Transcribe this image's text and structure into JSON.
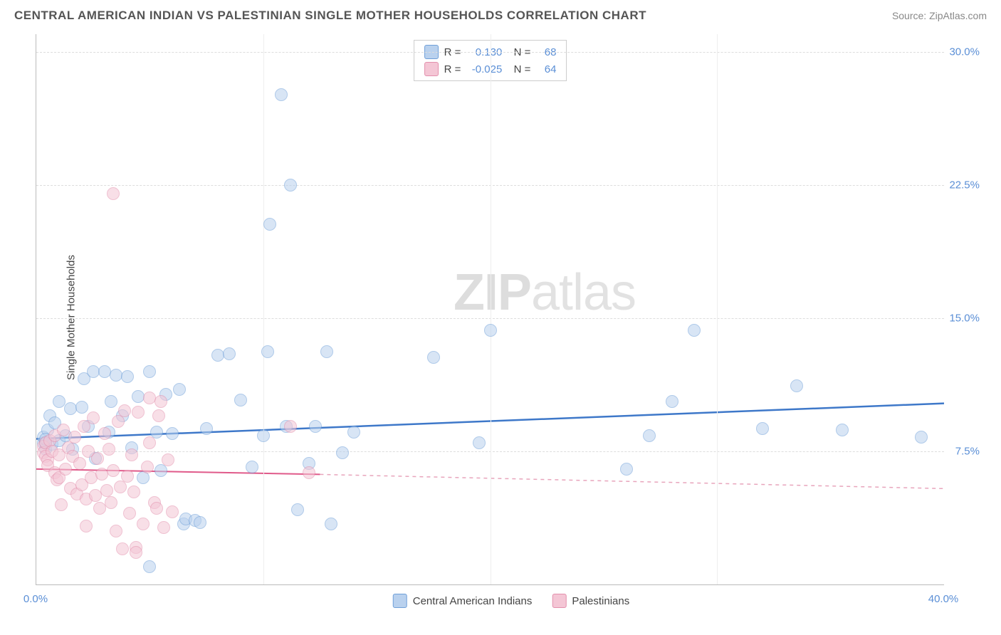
{
  "title": "CENTRAL AMERICAN INDIAN VS PALESTINIAN SINGLE MOTHER HOUSEHOLDS CORRELATION CHART",
  "source": "Source: ZipAtlas.com",
  "watermark_a": "ZIP",
  "watermark_b": "atlas",
  "chart": {
    "type": "scatter",
    "xlim": [
      0,
      40
    ],
    "ylim": [
      0,
      31
    ],
    "x_ticks": [
      0,
      10,
      20,
      30,
      40
    ],
    "x_tick_labels": [
      "0.0%",
      "",
      "",
      "",
      "40.0%"
    ],
    "y_ticks": [
      7.5,
      15.0,
      22.5,
      30.0
    ],
    "y_tick_labels": [
      "7.5%",
      "15.0%",
      "22.5%",
      "30.0%"
    ],
    "y_axis_label": "Single Mother Households",
    "background_color": "#ffffff",
    "grid_color": "#dddddd",
    "marker_radius": 9,
    "marker_opacity": 0.55,
    "series": [
      {
        "name": "Central American Indians",
        "fill": "#b9d1ee",
        "stroke": "#6f9fd8",
        "r_value": "0.130",
        "n_value": "68",
        "trend": {
          "x1": 0,
          "y1": 8.2,
          "x2": 40,
          "y2": 10.2,
          "color": "#3e78c9",
          "width": 2.5,
          "dash": "none"
        },
        "points": [
          [
            0.3,
            8.0
          ],
          [
            0.3,
            8.3
          ],
          [
            0.4,
            7.6
          ],
          [
            0.5,
            8.7
          ],
          [
            0.6,
            9.5
          ],
          [
            0.7,
            7.9
          ],
          [
            0.8,
            9.1
          ],
          [
            1.0,
            10.3
          ],
          [
            1.0,
            8.1
          ],
          [
            1.3,
            8.4
          ],
          [
            1.5,
            9.9
          ],
          [
            1.6,
            7.6
          ],
          [
            2.0,
            10.0
          ],
          [
            2.1,
            11.6
          ],
          [
            2.3,
            8.9
          ],
          [
            2.5,
            12.0
          ],
          [
            2.6,
            7.1
          ],
          [
            3.0,
            12.0
          ],
          [
            3.2,
            8.6
          ],
          [
            3.3,
            10.3
          ],
          [
            3.5,
            11.8
          ],
          [
            3.8,
            9.5
          ],
          [
            4.0,
            11.7
          ],
          [
            4.2,
            7.7
          ],
          [
            4.5,
            10.6
          ],
          [
            4.7,
            6.0
          ],
          [
            5.0,
            12.0
          ],
          [
            5.3,
            8.6
          ],
          [
            5.5,
            6.4
          ],
          [
            5.7,
            10.7
          ],
          [
            6.0,
            8.5
          ],
          [
            6.3,
            11.0
          ],
          [
            6.5,
            3.4
          ],
          [
            6.6,
            3.7
          ],
          [
            7.0,
            3.6
          ],
          [
            7.2,
            3.5
          ],
          [
            7.5,
            8.8
          ],
          [
            8.0,
            12.9
          ],
          [
            8.5,
            13.0
          ],
          [
            9.0,
            10.4
          ],
          [
            9.5,
            6.6
          ],
          [
            10.0,
            8.4
          ],
          [
            10.2,
            13.1
          ],
          [
            10.3,
            20.3
          ],
          [
            10.8,
            27.6
          ],
          [
            11.0,
            8.9
          ],
          [
            11.2,
            22.5
          ],
          [
            11.5,
            4.2
          ],
          [
            12.0,
            6.8
          ],
          [
            12.3,
            8.9
          ],
          [
            12.8,
            13.1
          ],
          [
            13.0,
            3.4
          ],
          [
            13.5,
            7.4
          ],
          [
            14.0,
            8.6
          ],
          [
            17.5,
            12.8
          ],
          [
            19.5,
            8.0
          ],
          [
            20.0,
            14.3
          ],
          [
            26.0,
            6.5
          ],
          [
            27.0,
            8.4
          ],
          [
            28.0,
            10.3
          ],
          [
            29.0,
            14.3
          ],
          [
            32.0,
            8.8
          ],
          [
            33.5,
            11.2
          ],
          [
            35.5,
            8.7
          ],
          [
            39.0,
            8.3
          ],
          [
            5.0,
            1.0
          ],
          [
            0.4,
            8.0
          ],
          [
            0.4,
            8.2
          ]
        ]
      },
      {
        "name": "Palestinians",
        "fill": "#f4c6d5",
        "stroke": "#e38fac",
        "r_value": "-0.025",
        "n_value": "64",
        "trend_solid": {
          "x1": 0,
          "y1": 6.5,
          "x2": 12.5,
          "y2": 6.2,
          "color": "#e05a8a",
          "width": 2,
          "dash": "none"
        },
        "trend_dash": {
          "x1": 12.5,
          "y1": 6.2,
          "x2": 40,
          "y2": 5.4,
          "color": "#e8a5bc",
          "width": 1.5,
          "dash": "5,5"
        },
        "points": [
          [
            0.3,
            7.8
          ],
          [
            0.3,
            7.4
          ],
          [
            0.4,
            7.2
          ],
          [
            0.4,
            8.0
          ],
          [
            0.5,
            7.0
          ],
          [
            0.5,
            6.7
          ],
          [
            0.6,
            8.1
          ],
          [
            0.7,
            7.5
          ],
          [
            0.8,
            8.4
          ],
          [
            0.8,
            6.3
          ],
          [
            0.9,
            5.9
          ],
          [
            1.0,
            7.3
          ],
          [
            1.0,
            6.0
          ],
          [
            1.2,
            8.7
          ],
          [
            1.3,
            6.5
          ],
          [
            1.4,
            7.7
          ],
          [
            1.5,
            5.4
          ],
          [
            1.6,
            7.2
          ],
          [
            1.7,
            8.3
          ],
          [
            1.8,
            5.1
          ],
          [
            1.9,
            6.8
          ],
          [
            2.0,
            5.6
          ],
          [
            2.1,
            8.9
          ],
          [
            2.2,
            4.8
          ],
          [
            2.3,
            7.5
          ],
          [
            2.4,
            6.0
          ],
          [
            2.5,
            9.4
          ],
          [
            2.6,
            5.0
          ],
          [
            2.7,
            7.1
          ],
          [
            2.8,
            4.3
          ],
          [
            2.9,
            6.2
          ],
          [
            3.0,
            8.5
          ],
          [
            3.1,
            5.3
          ],
          [
            3.2,
            7.6
          ],
          [
            3.3,
            4.6
          ],
          [
            3.4,
            6.4
          ],
          [
            3.5,
            3.0
          ],
          [
            3.6,
            9.2
          ],
          [
            3.7,
            5.5
          ],
          [
            3.8,
            2.0
          ],
          [
            3.9,
            9.8
          ],
          [
            4.0,
            6.1
          ],
          [
            4.1,
            4.0
          ],
          [
            4.2,
            7.3
          ],
          [
            4.3,
            5.2
          ],
          [
            4.5,
            9.7
          ],
          [
            4.7,
            3.4
          ],
          [
            4.9,
            6.6
          ],
          [
            5.0,
            8.0
          ],
          [
            5.2,
            4.6
          ],
          [
            5.4,
            9.5
          ],
          [
            5.6,
            3.2
          ],
          [
            5.8,
            7.0
          ],
          [
            6.0,
            4.1
          ],
          [
            3.4,
            22.0
          ],
          [
            4.4,
            2.1
          ],
          [
            4.4,
            1.8
          ],
          [
            5.0,
            10.5
          ],
          [
            5.5,
            10.3
          ],
          [
            5.3,
            4.3
          ],
          [
            11.2,
            8.9
          ],
          [
            12.0,
            6.3
          ],
          [
            1.1,
            4.5
          ],
          [
            2.2,
            3.3
          ]
        ]
      }
    ],
    "bottom_legend": [
      {
        "label": "Central American Indians",
        "fill": "#b9d1ee",
        "stroke": "#6f9fd8"
      },
      {
        "label": "Palestinians",
        "fill": "#f4c6d5",
        "stroke": "#e38fac"
      }
    ]
  }
}
